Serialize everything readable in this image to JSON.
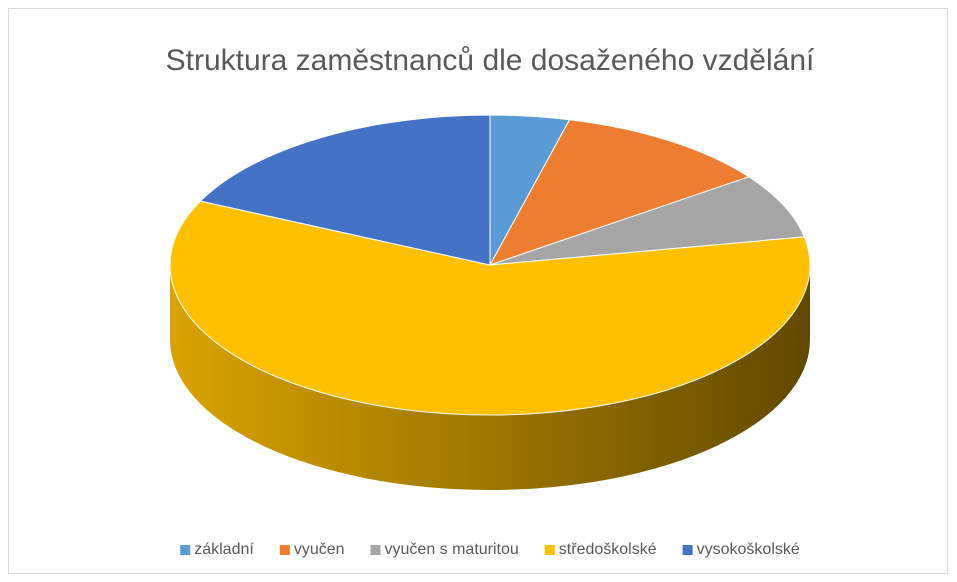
{
  "chart_data": {
    "type": "pie3d",
    "title": "Struktura zaměstnanců dle dosaženého vzdělání",
    "categories": [
      "základní",
      "vyučen",
      "vyučen s maturitou",
      "středoškolské",
      "vysokoškolské"
    ],
    "values": [
      4,
      11,
      7,
      60,
      18
    ],
    "colors": [
      "#5b9bd5",
      "#ed7d31",
      "#a5a5a5",
      "#ffc000",
      "#4472c4"
    ],
    "legend": "bottom"
  }
}
